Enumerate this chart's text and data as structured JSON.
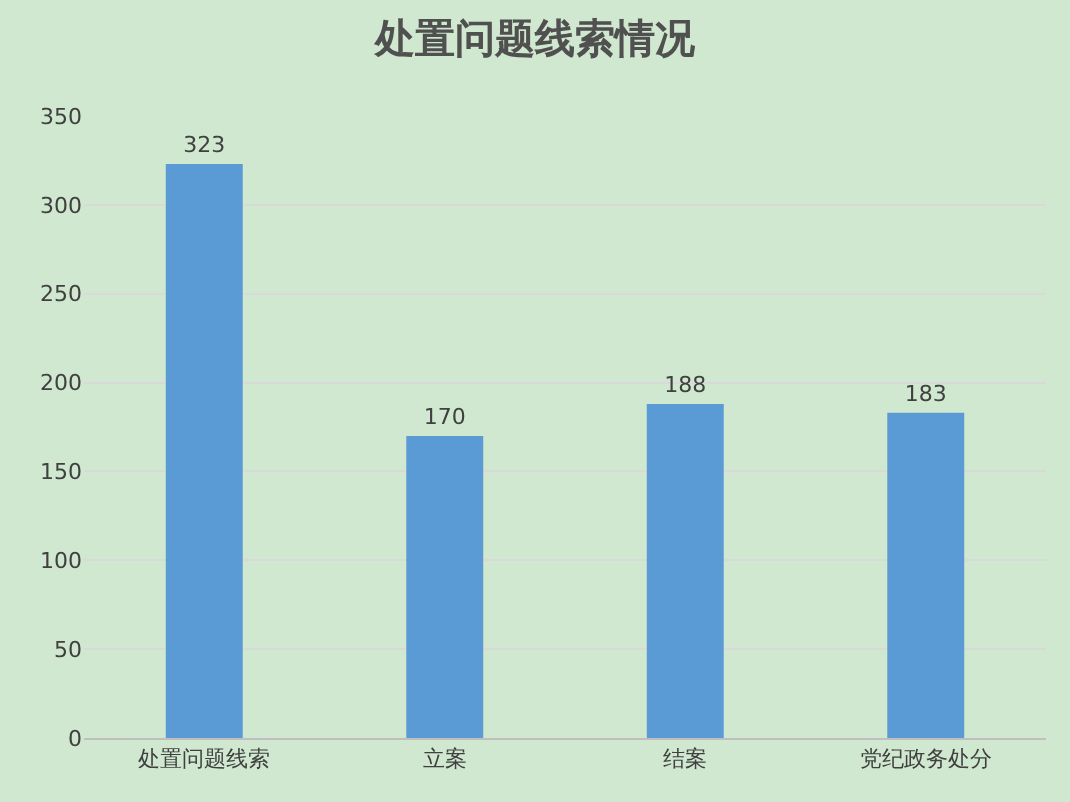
{
  "chart_data": {
    "type": "bar",
    "title": "处置问题线索情况",
    "categories": [
      "处置问题线索",
      "立案",
      "结案",
      "党纪政务处分"
    ],
    "values": [
      323,
      170,
      188,
      183
    ],
    "color": "#5b9bd5",
    "ylim": [
      0,
      350
    ],
    "yticks": [
      0,
      50,
      100,
      150,
      200,
      250,
      300,
      350
    ],
    "grid": "y",
    "data_labels": true,
    "legend": false
  }
}
